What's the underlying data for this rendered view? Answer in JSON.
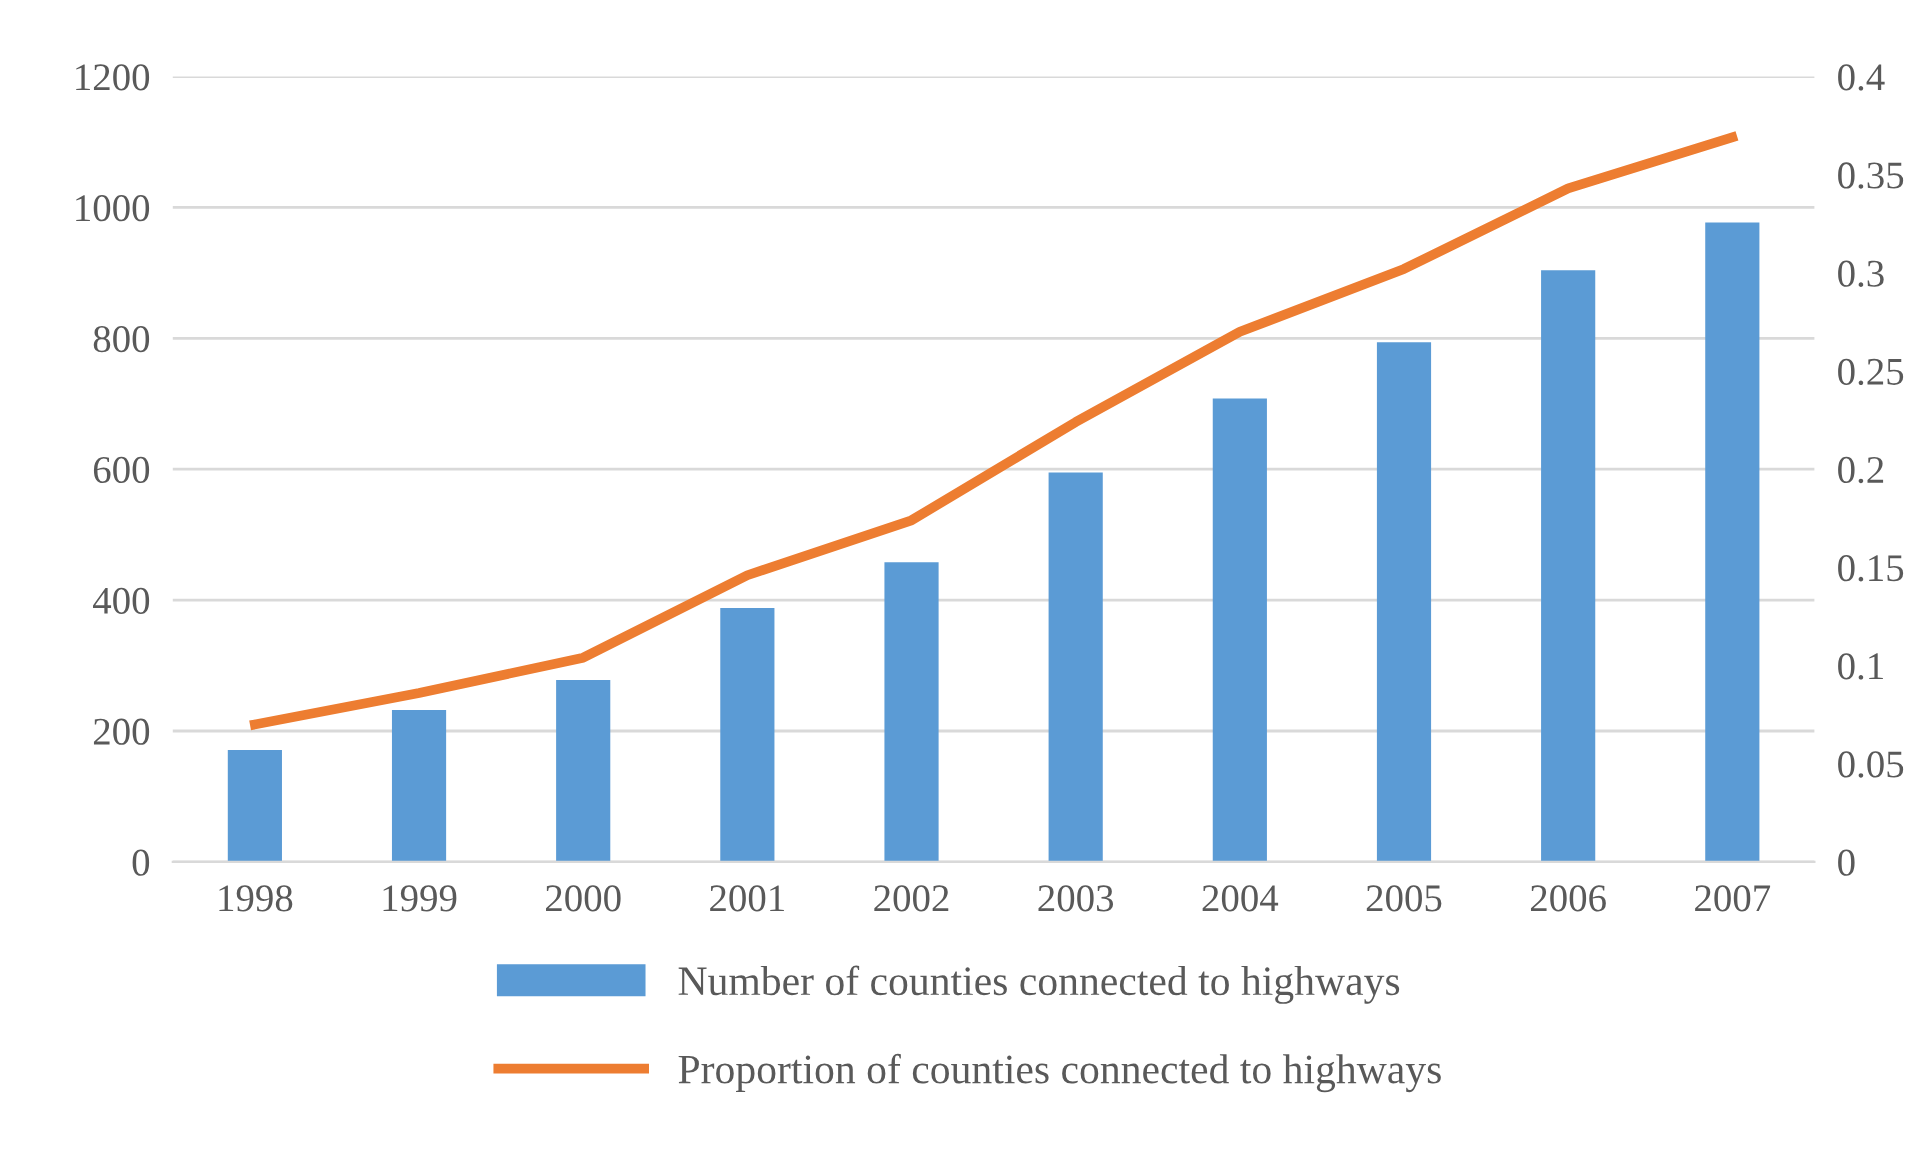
{
  "chart_data": {
    "type": "bar",
    "categories": [
      "1998",
      "1999",
      "2000",
      "2001",
      "2002",
      "2003",
      "2004",
      "2005",
      "2006",
      "2007"
    ],
    "series": [
      {
        "name": "Number of counties connected to highways",
        "color": "#5b9bd5",
        "values": [
          171,
          232,
          278,
          388,
          458,
          595,
          708,
          794,
          904,
          977
        ]
      },
      {
        "name": "Proportion of counties connected to highways",
        "color": "#ed7d31",
        "type": "line",
        "axis": "y2",
        "values": [
          0.07,
          0.086,
          0.104,
          0.146,
          0.174,
          0.224,
          0.27,
          0.302,
          0.343,
          0.369
        ]
      }
    ],
    "ylim": [
      0,
      1200
    ],
    "yticks": [
      0,
      200,
      400,
      600,
      800,
      1000,
      1200
    ],
    "y2lim": [
      0,
      0.4
    ],
    "y2ticks": [
      0,
      0.05,
      0.1,
      0.15,
      0.2,
      0.25,
      0.3,
      0.35,
      0.4
    ],
    "grid": "y",
    "legend": "bottom",
    "marker": "none",
    "line_style": "solid"
  }
}
